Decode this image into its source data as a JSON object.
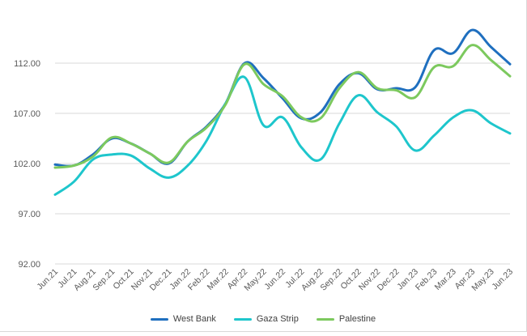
{
  "chart_data": {
    "type": "line",
    "title": "",
    "xlabel": "",
    "ylabel": "",
    "ylim": [
      92,
      117
    ],
    "yticks": [
      "92.00",
      "97.00",
      "102.00",
      "107.00",
      "112.00"
    ],
    "grid": true,
    "legend_position": "bottom",
    "categories": [
      "Jun.21",
      "Jul.21",
      "Aug.21",
      "Sep.21",
      "Oct.21",
      "Nov.21",
      "Dec.21",
      "Jan.22",
      "Feb.22",
      "Mar.22",
      "Apr.22",
      "May.22",
      "Jun.22",
      "Jul.22",
      "Aug.22",
      "Sep.22",
      "Oct.22",
      "Nov.22",
      "Dec.22",
      "Jan.23",
      "Feb.23",
      "Mar.23",
      "Apr.23",
      "May.23",
      "Jun.23"
    ],
    "series": [
      {
        "name": "West Bank",
        "color": "#1f6fbf",
        "values": [
          101.9,
          101.8,
          102.9,
          104.5,
          104.0,
          103.0,
          102.0,
          104.2,
          105.7,
          108.0,
          112.0,
          110.5,
          108.5,
          106.5,
          107.1,
          109.9,
          111.0,
          109.4,
          109.5,
          109.6,
          113.3,
          113.0,
          115.3,
          113.6,
          111.9
        ]
      },
      {
        "name": "Gaza Strip",
        "color": "#1ec6cc",
        "values": [
          98.9,
          100.2,
          102.4,
          102.9,
          102.8,
          101.5,
          100.6,
          101.8,
          104.3,
          108.0,
          110.6,
          105.8,
          106.6,
          103.6,
          102.4,
          106.0,
          108.8,
          107.1,
          105.7,
          103.3,
          104.8,
          106.6,
          107.3,
          106.0,
          105.0
        ]
      },
      {
        "name": "Palestine",
        "color": "#7cc95e",
        "values": [
          101.6,
          101.8,
          102.7,
          104.6,
          104.0,
          103.0,
          102.1,
          104.2,
          105.6,
          107.9,
          111.9,
          109.9,
          108.7,
          106.6,
          106.5,
          109.5,
          111.1,
          109.5,
          109.3,
          108.6,
          111.6,
          111.7,
          113.8,
          112.3,
          110.7
        ]
      }
    ]
  }
}
